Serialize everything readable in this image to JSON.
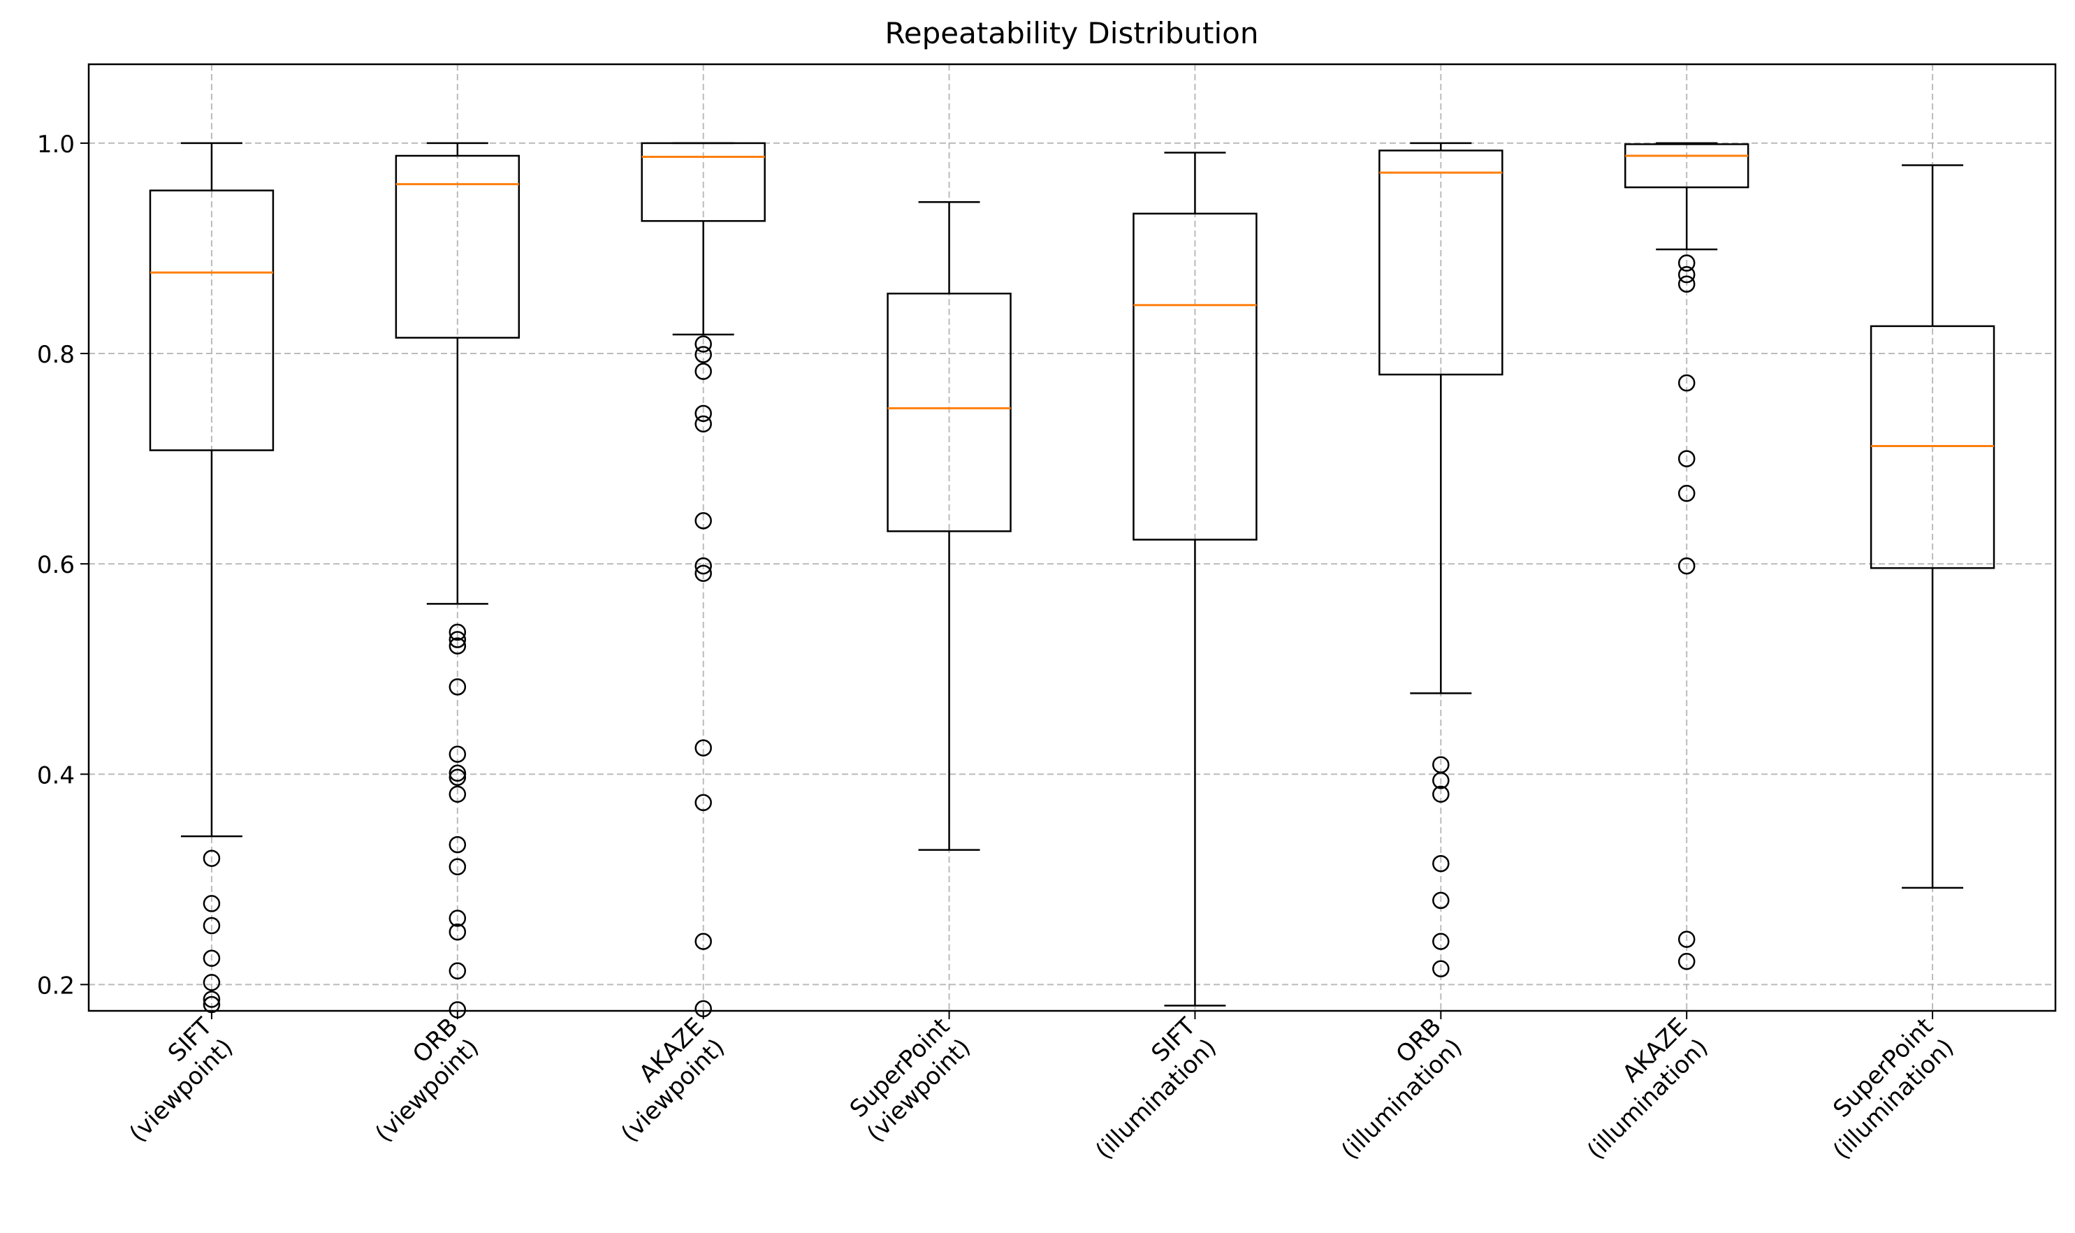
{
  "chart_data": {
    "type": "box",
    "title": "Repeatability Distribution",
    "xlabel": "",
    "ylabel": "",
    "ylim": [
      0.175,
      1.075
    ],
    "yticks": [
      0.2,
      0.4,
      0.6,
      0.8,
      1.0
    ],
    "ytick_labels": [
      "0.2",
      "0.4",
      "0.6",
      "0.8",
      "1.0"
    ],
    "grid": true,
    "colors": {
      "box": "#000000",
      "median": "#ff7f0e",
      "grid": "#b0b0b0"
    },
    "categories": [
      {
        "line1": "SIFT",
        "line2": "(viewpoint)"
      },
      {
        "line1": "ORB",
        "line2": "(viewpoint)"
      },
      {
        "line1": "AKAZE",
        "line2": "(viewpoint)"
      },
      {
        "line1": "SuperPoint",
        "line2": "(viewpoint)"
      },
      {
        "line1": "SIFT",
        "line2": "(illumination)"
      },
      {
        "line1": "ORB",
        "line2": "(illumination)"
      },
      {
        "line1": "AKAZE",
        "line2": "(illumination)"
      },
      {
        "line1": "SuperPoint",
        "line2": "(illumination)"
      }
    ],
    "boxes": [
      {
        "whislo": 0.341,
        "q1": 0.708,
        "med": 0.877,
        "q3": 0.955,
        "whishi": 1.0,
        "fliers": [
          0.32,
          0.277,
          0.256,
          0.225,
          0.202,
          0.186,
          0.181
        ]
      },
      {
        "whislo": 0.562,
        "q1": 0.815,
        "med": 0.961,
        "q3": 0.988,
        "whishi": 1.0,
        "fliers": [
          0.535,
          0.528,
          0.522,
          0.483,
          0.419,
          0.401,
          0.397,
          0.381,
          0.333,
          0.312,
          0.263,
          0.25,
          0.213,
          0.176
        ]
      },
      {
        "whislo": 0.818,
        "q1": 0.926,
        "med": 0.987,
        "q3": 1.0,
        "whishi": 1.0,
        "fliers": [
          0.809,
          0.799,
          0.783,
          0.743,
          0.733,
          0.641,
          0.598,
          0.591,
          0.425,
          0.373,
          0.241,
          0.177
        ]
      },
      {
        "whislo": 0.328,
        "q1": 0.631,
        "med": 0.748,
        "q3": 0.857,
        "whishi": 0.944,
        "fliers": []
      },
      {
        "whislo": 0.18,
        "q1": 0.623,
        "med": 0.846,
        "q3": 0.933,
        "whishi": 0.991,
        "fliers": []
      },
      {
        "whislo": 0.477,
        "q1": 0.78,
        "med": 0.972,
        "q3": 0.993,
        "whishi": 1.0,
        "fliers": [
          0.409,
          0.394,
          0.381,
          0.315,
          0.28,
          0.241,
          0.215
        ]
      },
      {
        "whislo": 0.899,
        "q1": 0.958,
        "med": 0.988,
        "q3": 0.999,
        "whishi": 1.0,
        "fliers": [
          0.886,
          0.875,
          0.866,
          0.772,
          0.7,
          0.667,
          0.598,
          0.243,
          0.222
        ]
      },
      {
        "whislo": 0.292,
        "q1": 0.596,
        "med": 0.712,
        "q3": 0.826,
        "whishi": 0.979,
        "fliers": []
      }
    ]
  }
}
